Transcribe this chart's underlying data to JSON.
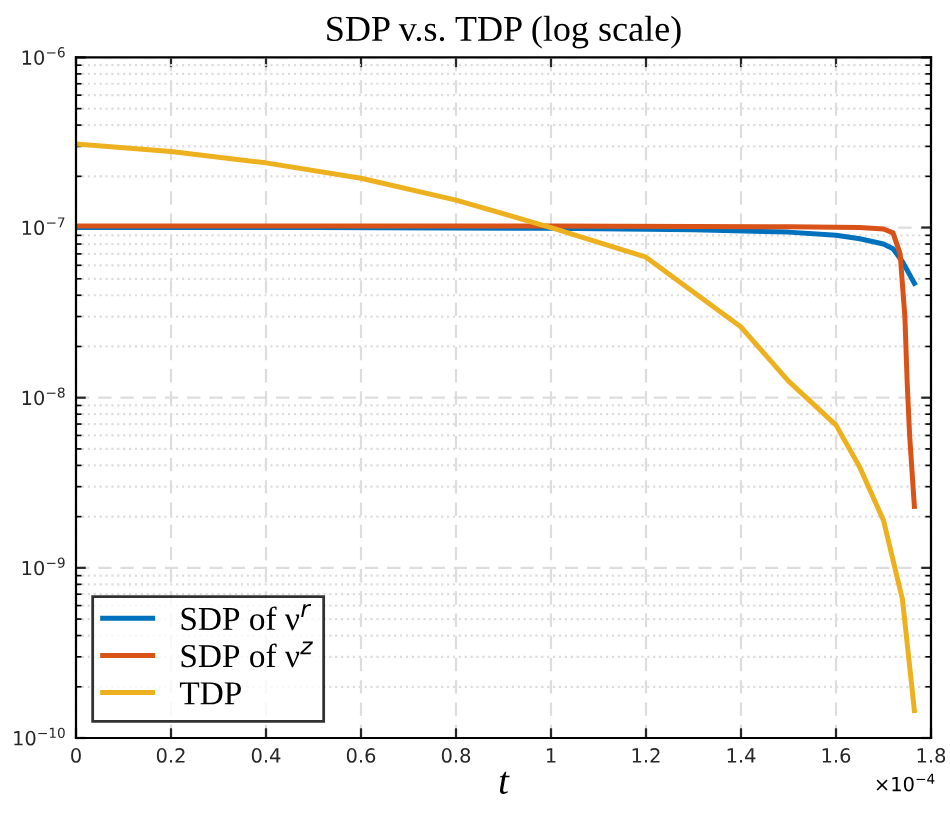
{
  "chart_data": {
    "type": "line",
    "title": "SDP v.s. TDP (log scale)",
    "xlabel": "t",
    "annotations": [
      "×10$^{−4}$"
    ],
    "log": "y",
    "grid": true,
    "legend": "bottom left",
    "line_style": "solid",
    "xlim": [
      0,
      1.8
    ],
    "xticks": [
      0,
      0.2,
      0.4,
      0.6,
      0.8,
      1,
      1.2,
      1.4,
      1.6,
      1.8
    ],
    "ylim": [
      1e-10,
      1e-06
    ],
    "yticks": [
      {
        "value": 1e-10,
        "label": "10$^{−10}$"
      },
      {
        "value": 1e-09,
        "label": "10$^{−9}$"
      },
      {
        "value": 1e-08,
        "label": "10$^{−8}$"
      },
      {
        "value": 1e-07,
        "label": "10$^{−7}$"
      },
      {
        "value": 1e-06,
        "label": "10$^{−6}$"
      }
    ],
    "series": [
      {
        "name": "SDP of ν$^{r}$",
        "color": "#0072bd",
        "x": [
          0,
          0.5,
          1.0,
          1.3,
          1.5,
          1.6,
          1.65,
          1.7,
          1.72,
          1.74,
          1.765
        ],
        "values": [
          1e-07,
          1e-07,
          9.9e-08,
          9.7e-08,
          9.4e-08,
          9e-08,
          8.6e-08,
          8e-08,
          7.5e-08,
          6.3e-08,
          4.7e-08
        ]
      },
      {
        "name": "SDP of ν$^{z}$",
        "color": "#d95319",
        "x": [
          0,
          0.5,
          1.0,
          1.5,
          1.65,
          1.7,
          1.72,
          1.735,
          1.745,
          1.75,
          1.755,
          1.765
        ],
        "values": [
          1.02e-07,
          1.02e-07,
          1.02e-07,
          1.01e-07,
          1e-07,
          9.8e-08,
          9.3e-08,
          7e-08,
          3e-08,
          1.2e-08,
          6e-09,
          2.3e-09
        ]
      },
      {
        "name": "TDP",
        "color": "#edb120",
        "x": [
          0,
          0.2,
          0.4,
          0.6,
          0.8,
          1.0,
          1.2,
          1.4,
          1.5,
          1.6,
          1.65,
          1.7,
          1.74,
          1.765
        ],
        "values": [
          3.1e-07,
          2.8e-07,
          2.4e-07,
          1.95e-07,
          1.45e-07,
          1e-07,
          6.7e-08,
          2.6e-08,
          1.25e-08,
          6.9e-09,
          3.9e-09,
          1.9e-09,
          6.5e-10,
          1.45e-10
        ]
      }
    ]
  }
}
